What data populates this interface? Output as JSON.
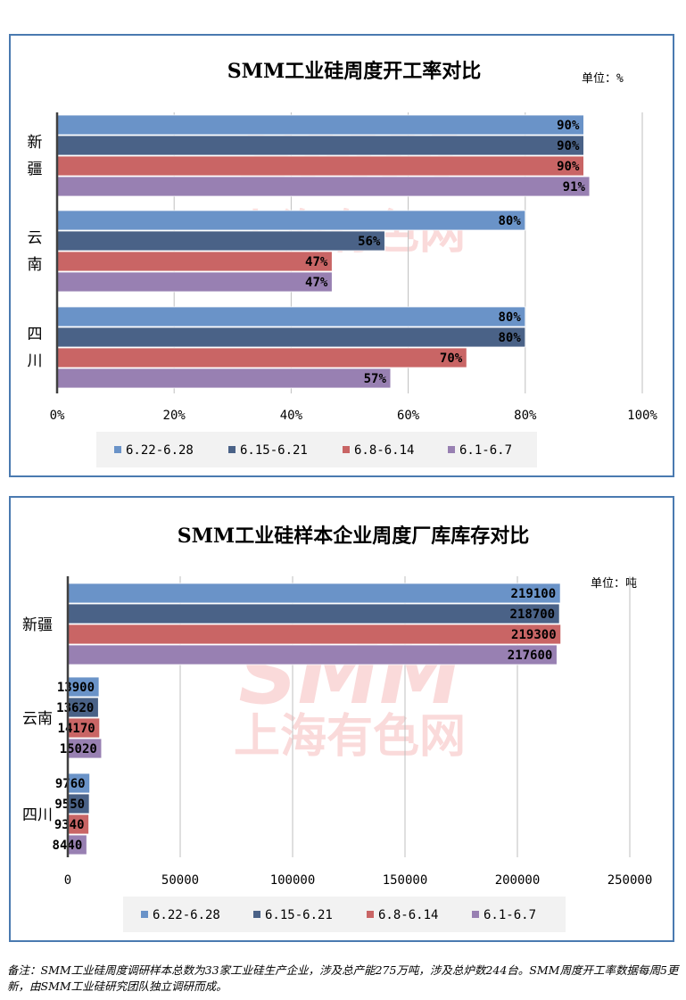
{
  "chart_data": [
    {
      "type": "bar",
      "orientation": "horizontal",
      "title": "SMM工业硅周度开工率对比",
      "unit_label": "单位：%",
      "categories": [
        "新疆",
        "云南",
        "四川"
      ],
      "series": [
        {
          "name": "6.22-6.28",
          "color": "#6a93c8",
          "values": [
            90,
            80,
            80
          ],
          "labels": [
            "90%",
            "80%",
            "80%"
          ]
        },
        {
          "name": "6.15-6.21",
          "color": "#4a6287",
          "values": [
            90,
            56,
            80
          ],
          "labels": [
            "90%",
            "56%",
            "80%"
          ]
        },
        {
          "name": "6.8-6.14",
          "color": "#c96565",
          "values": [
            90,
            47,
            70
          ],
          "labels": [
            "90%",
            "47%",
            "70%"
          ]
        },
        {
          "name": "6.1-6.7",
          "color": "#9880b2",
          "values": [
            91,
            47,
            57
          ],
          "labels": [
            "91%",
            "47%",
            "57%"
          ]
        }
      ],
      "xlim": [
        0,
        100
      ],
      "xticks": [
        0,
        20,
        40,
        60,
        80,
        100
      ],
      "xtick_labels": [
        "0%",
        "20%",
        "40%",
        "60%",
        "80%",
        "100%"
      ],
      "grid": true,
      "legend": "bottom"
    },
    {
      "type": "bar",
      "orientation": "horizontal",
      "title": "SMM工业硅样本企业周度厂库库存对比",
      "unit_label": "单位：吨",
      "categories": [
        "新疆",
        "云南",
        "四川"
      ],
      "series": [
        {
          "name": "6.22-6.28",
          "color": "#6a93c8",
          "values": [
            219100,
            13900,
            9760
          ],
          "labels": [
            "219100",
            "13900",
            "9760"
          ]
        },
        {
          "name": "6.15-6.21",
          "color": "#4a6287",
          "values": [
            218700,
            13620,
            9550
          ],
          "labels": [
            "218700",
            "13620",
            "9550"
          ]
        },
        {
          "name": "6.8-6.14",
          "color": "#c96565",
          "values": [
            219300,
            14170,
            9340
          ],
          "labels": [
            "219300",
            "14170",
            "9340"
          ]
        },
        {
          "name": "6.1-6.7",
          "color": "#9880b2",
          "values": [
            217600,
            15020,
            8440
          ],
          "labels": [
            "217600",
            "15020",
            "8440"
          ]
        }
      ],
      "xlim": [
        0,
        250000
      ],
      "xticks": [
        0,
        50000,
        100000,
        150000,
        200000,
        250000
      ],
      "xtick_labels": [
        "0",
        "50000",
        "100000",
        "150000",
        "200000",
        "250000"
      ],
      "grid": true,
      "legend": "bottom"
    }
  ],
  "watermark": {
    "line1": "SMM",
    "line2": "上海有色网"
  },
  "footnote": "备注：SMM工业硅周度调研样本总数为33家工业硅生产企业，涉及总产能275万吨，涉及总炉数244台。SMM周度开工率数据每周5更新，由SMM工业硅研究团队独立调研而成。"
}
